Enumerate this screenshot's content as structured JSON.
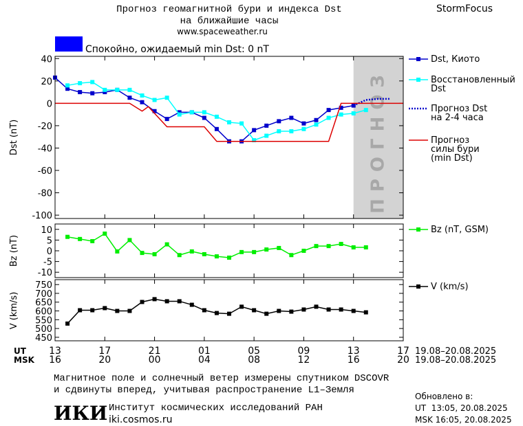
{
  "header": {
    "title_lines": [
      "Прогноз геомагнитной бури и индекса Dst",
      "на ближайшие часы"
    ],
    "url": "www.spaceweather.ru",
    "brand": "StormFocus"
  },
  "status": {
    "text": "Спокойно, ожидаемый min Dst: 0 nT",
    "color": "#0000ff"
  },
  "x_axis": {
    "xlim": [
      0,
      28
    ],
    "ut_label": "UT",
    "ut_ticks": [
      {
        "value": 0,
        "label": "13"
      },
      {
        "value": 4,
        "label": "17"
      },
      {
        "value": 8,
        "label": "21"
      },
      {
        "value": 12,
        "label": "01"
      },
      {
        "value": 16,
        "label": "05"
      },
      {
        "value": 20,
        "label": "09"
      },
      {
        "value": 24,
        "label": "13"
      },
      {
        "value": 28,
        "label": "17"
      }
    ],
    "msk_label": "MSK",
    "msk_ticks": [
      {
        "value": 0,
        "label": "16"
      },
      {
        "value": 4,
        "label": "20"
      },
      {
        "value": 8,
        "label": "00"
      },
      {
        "value": 12,
        "label": "04"
      },
      {
        "value": 16,
        "label": "08"
      },
      {
        "value": 20,
        "label": "12"
      },
      {
        "value": 24,
        "label": "16"
      },
      {
        "value": 28,
        "label": "20"
      }
    ],
    "date_range": "19.08–20.08.2025"
  },
  "chart_data": [
    {
      "type": "line",
      "ylabel": "Dst (nT)",
      "ylim": [
        -103,
        42
      ],
      "yticks": [
        -100,
        -80,
        -60,
        -40,
        -20,
        0,
        20,
        40
      ],
      "forecast_region": {
        "xlim": [
          24,
          28
        ],
        "label": "ПРОГНОЗ",
        "color": "#d3d3d3"
      },
      "series": [
        {
          "name": "Dst, Киото",
          "color": "#0000cc",
          "marker": "square",
          "x": [
            0,
            1,
            2,
            3,
            4,
            5,
            6,
            7,
            8,
            9,
            10,
            11,
            12,
            13,
            14,
            15,
            16,
            17,
            18,
            19,
            20,
            21,
            22,
            23,
            24
          ],
          "values": [
            23,
            13,
            10,
            9,
            10,
            12,
            5,
            1,
            -7,
            -14,
            -8,
            -8,
            -13,
            -23,
            -34,
            -34,
            -24,
            -20,
            -16,
            -13,
            -18,
            -15,
            -6,
            -4,
            -2
          ]
        },
        {
          "name": "Восстановленный\nDst",
          "color": "#00ffff",
          "marker": "square",
          "x": [
            1,
            2,
            3,
            4,
            5,
            6,
            7,
            8,
            9,
            10,
            11,
            12,
            13,
            14,
            15,
            16,
            17,
            18,
            19,
            20,
            21,
            22,
            23,
            24,
            25
          ],
          "values": [
            16,
            18,
            19,
            12,
            12,
            12,
            7,
            3,
            5,
            -10,
            -8,
            -8,
            -12,
            -17,
            -18,
            -33,
            -29,
            -25,
            -25,
            -23,
            -19,
            -13,
            -10,
            -9,
            -6
          ]
        },
        {
          "name": "Прогноз Dst\nна 2-4 часа",
          "color": "#0000cc",
          "dash": "dotted",
          "x": [
            24,
            25,
            26,
            27
          ],
          "values": [
            -2,
            3,
            4,
            4
          ]
        },
        {
          "name": "Прогноз\nсилы бури\n(min Dst)",
          "color": "#dd0000",
          "x": [
            0,
            6,
            7,
            7.5,
            9,
            12,
            13,
            22,
            23,
            28
          ],
          "values": [
            0,
            0,
            -7,
            -3,
            -21,
            -21,
            -34,
            -34,
            0,
            0
          ]
        }
      ]
    },
    {
      "type": "line",
      "ylabel": "Bz (nT)",
      "ylim": [
        -12.5,
        12.5
      ],
      "yticks": [
        -10,
        -5,
        0,
        5,
        10
      ],
      "series": [
        {
          "name": "Bz (nT, GSM)",
          "color": "#00ee00",
          "marker": "square",
          "x": [
            1,
            2,
            3,
            4,
            5,
            6,
            7,
            8,
            9,
            10,
            11,
            12,
            13,
            14,
            15,
            16,
            17,
            18,
            19,
            20,
            21,
            22,
            23,
            24,
            25
          ],
          "values": [
            6.5,
            5.5,
            4.5,
            8,
            -0.3,
            5,
            -1,
            -1.6,
            3,
            -2,
            -0.3,
            -1.6,
            -2.6,
            -3.2,
            -0.6,
            -0.6,
            0.6,
            1.3,
            -2,
            0,
            2.2,
            2.2,
            3.2,
            1.6,
            1.6
          ]
        }
      ]
    },
    {
      "type": "line",
      "ylabel": "V (km/s)",
      "ylim": [
        430,
        778
      ],
      "yticks": [
        450,
        500,
        550,
        600,
        650,
        700,
        750
      ],
      "series": [
        {
          "name": "V (km/s)",
          "color": "#000000",
          "marker": "square",
          "x": [
            1,
            2,
            3,
            4,
            5,
            6,
            7,
            8,
            9,
            10,
            11,
            12,
            13,
            14,
            15,
            16,
            17,
            18,
            19,
            20,
            21,
            22,
            23,
            24,
            25
          ],
          "values": [
            528,
            604,
            604,
            616,
            600,
            600,
            651,
            667,
            655,
            655,
            635,
            604,
            588,
            584,
            624,
            604,
            584,
            600,
            596,
            608,
            624,
            608,
            608,
            600,
            592
          ]
        }
      ]
    }
  ],
  "footer": {
    "note_lines": [
      "Магнитное поле и солнечный ветер измерены спутником DSCOVR",
      "и сдвинуты вперед, учитывая распространение L1–Земля"
    ],
    "logo": "ИКИ",
    "institute": "Институт космических исследований РАН",
    "institute_url": "iki.cosmos.ru",
    "updated_label": "Обновлено в:",
    "updated_ut": "UT  13:05, 20.08.2025",
    "updated_msk": "MSK 16:05, 20.08.2025"
  }
}
